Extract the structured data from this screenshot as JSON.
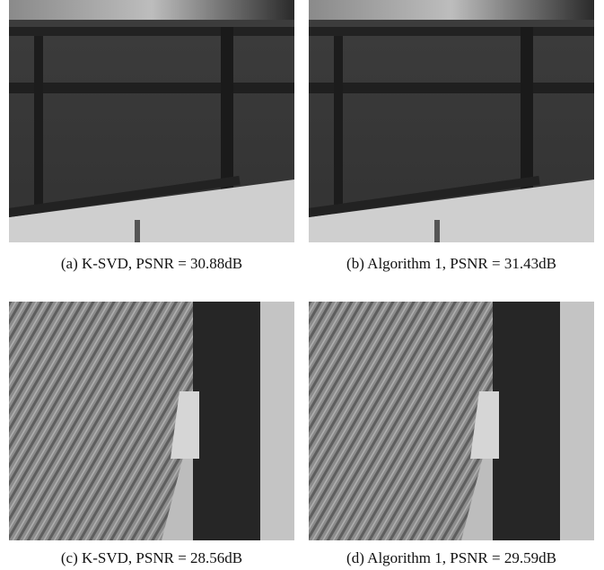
{
  "figure": {
    "panels": [
      {
        "caption": "(a) K-SVD, PSNR = 30.88dB"
      },
      {
        "caption": "(b) Algorithm 1, PSNR = 31.43dB"
      },
      {
        "caption": "(c) K-SVD, PSNR = 28.56dB"
      },
      {
        "caption": "(d) Algorithm 1, PSNR = 29.59dB"
      }
    ]
  }
}
